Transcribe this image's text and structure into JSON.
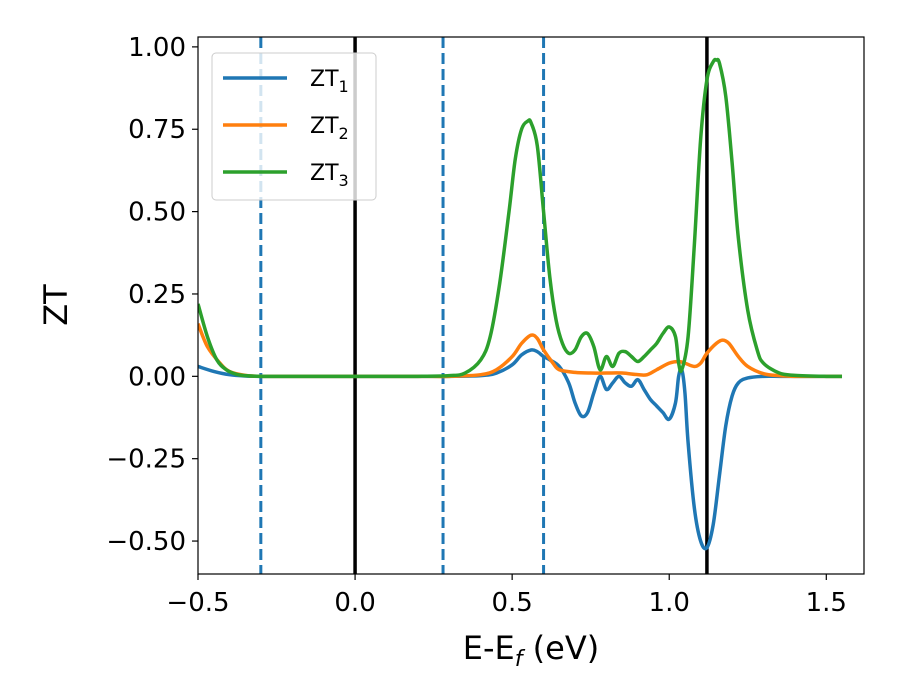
{
  "chart_data": {
    "type": "line",
    "xlabel": "E-E",
    "xlabel_sub": "f",
    "xlabel_unit": " (eV)",
    "ylabel": "ZT",
    "xlim": [
      -0.5,
      1.62
    ],
    "ylim": [
      -0.6,
      1.03
    ],
    "xticks": [
      -0.5,
      0.0,
      0.5,
      1.0,
      1.5
    ],
    "xtick_labels": [
      "−0.5",
      "0.0",
      "0.5",
      "1.0",
      "1.5"
    ],
    "yticks": [
      1.0,
      0.75,
      0.5,
      0.25,
      0.0,
      -0.25,
      -0.5
    ],
    "ytick_labels": [
      "1.00",
      "0.75",
      "0.50",
      "0.25",
      "0.00",
      "−0.25",
      "−0.50"
    ],
    "grid": false,
    "legend_position": "top-left",
    "series": [
      {
        "name": "ZT",
        "name_sub": "1",
        "color": "#1f77b4",
        "x": [
          -0.5,
          -0.45,
          -0.4,
          -0.35,
          -0.3,
          -0.2,
          0.0,
          0.2,
          0.3,
          0.4,
          0.45,
          0.5,
          0.53,
          0.56,
          0.58,
          0.6,
          0.62,
          0.65,
          0.68,
          0.7,
          0.72,
          0.74,
          0.76,
          0.78,
          0.8,
          0.82,
          0.84,
          0.86,
          0.88,
          0.9,
          0.92,
          0.94,
          0.96,
          0.98,
          1.0,
          1.02,
          1.03,
          1.04,
          1.05,
          1.06,
          1.08,
          1.1,
          1.12,
          1.14,
          1.16,
          1.18,
          1.2,
          1.22,
          1.25,
          1.3,
          1.35,
          1.4,
          1.5,
          1.55
        ],
        "y": [
          0.03,
          0.015,
          0.005,
          0.001,
          0.0,
          0.0,
          0.0,
          0.0,
          0.0,
          0.002,
          0.01,
          0.035,
          0.065,
          0.08,
          0.075,
          0.06,
          0.05,
          0.03,
          -0.02,
          -0.08,
          -0.12,
          -0.11,
          -0.05,
          0.0,
          -0.04,
          -0.02,
          0.0,
          -0.02,
          -0.03,
          -0.01,
          -0.04,
          -0.07,
          -0.09,
          -0.11,
          -0.13,
          -0.08,
          0.0,
          0.02,
          -0.05,
          -0.2,
          -0.4,
          -0.5,
          -0.52,
          -0.45,
          -0.3,
          -0.15,
          -0.06,
          -0.02,
          -0.005,
          0.0,
          0.0,
          0.0,
          0.0,
          0.0
        ]
      },
      {
        "name": "ZT",
        "name_sub": "2",
        "color": "#ff7f0e",
        "x": [
          -0.5,
          -0.47,
          -0.43,
          -0.4,
          -0.35,
          -0.3,
          -0.2,
          0.0,
          0.2,
          0.3,
          0.4,
          0.45,
          0.5,
          0.53,
          0.56,
          0.58,
          0.6,
          0.63,
          0.65,
          0.7,
          0.75,
          0.8,
          0.85,
          0.9,
          0.93,
          0.96,
          1.0,
          1.03,
          1.05,
          1.08,
          1.1,
          1.12,
          1.15,
          1.17,
          1.19,
          1.22,
          1.25,
          1.3,
          1.35,
          1.4,
          1.5,
          1.55
        ],
        "y": [
          0.16,
          0.09,
          0.04,
          0.015,
          0.003,
          0.0,
          0.0,
          0.0,
          0.0,
          0.0,
          0.005,
          0.02,
          0.06,
          0.1,
          0.125,
          0.115,
          0.08,
          0.04,
          0.02,
          0.012,
          0.01,
          0.01,
          0.01,
          0.005,
          0.005,
          0.02,
          0.04,
          0.045,
          0.04,
          0.03,
          0.04,
          0.07,
          0.1,
          0.11,
          0.1,
          0.06,
          0.03,
          0.008,
          0.002,
          0.0,
          0.0,
          0.0
        ]
      },
      {
        "name": "ZT",
        "name_sub": "3",
        "color": "#2ca02c",
        "x": [
          -0.5,
          -0.47,
          -0.44,
          -0.41,
          -0.38,
          -0.35,
          -0.3,
          -0.2,
          0.0,
          0.2,
          0.3,
          0.35,
          0.4,
          0.43,
          0.46,
          0.49,
          0.51,
          0.53,
          0.55,
          0.56,
          0.58,
          0.6,
          0.62,
          0.64,
          0.66,
          0.68,
          0.7,
          0.72,
          0.74,
          0.76,
          0.78,
          0.8,
          0.82,
          0.84,
          0.86,
          0.88,
          0.9,
          0.92,
          0.94,
          0.96,
          0.98,
          1.0,
          1.02,
          1.03,
          1.04,
          1.06,
          1.08,
          1.1,
          1.12,
          1.14,
          1.15,
          1.16,
          1.18,
          1.2,
          1.22,
          1.25,
          1.28,
          1.3,
          1.35,
          1.4,
          1.5,
          1.55
        ],
        "y": [
          0.22,
          0.12,
          0.05,
          0.02,
          0.007,
          0.002,
          0.0,
          0.0,
          0.0,
          0.0,
          0.002,
          0.01,
          0.05,
          0.12,
          0.28,
          0.5,
          0.66,
          0.75,
          0.775,
          0.77,
          0.7,
          0.5,
          0.3,
          0.17,
          0.1,
          0.07,
          0.08,
          0.12,
          0.13,
          0.09,
          0.02,
          0.06,
          0.03,
          0.07,
          0.075,
          0.06,
          0.045,
          0.06,
          0.08,
          0.1,
          0.13,
          0.15,
          0.12,
          0.04,
          0.02,
          0.12,
          0.4,
          0.72,
          0.9,
          0.955,
          0.96,
          0.95,
          0.85,
          0.65,
          0.42,
          0.2,
          0.08,
          0.04,
          0.01,
          0.003,
          0.0,
          0.0
        ]
      }
    ],
    "vlines": [
      {
        "x": -0.3,
        "color": "#1f77b4",
        "style": "dashed"
      },
      {
        "x": 0.0,
        "color": "#000000",
        "style": "solid"
      },
      {
        "x": 0.28,
        "color": "#1f77b4",
        "style": "dashed"
      },
      {
        "x": 0.6,
        "color": "#1f77b4",
        "style": "dashed"
      },
      {
        "x": 1.12,
        "color": "#000000",
        "style": "solid"
      }
    ]
  }
}
